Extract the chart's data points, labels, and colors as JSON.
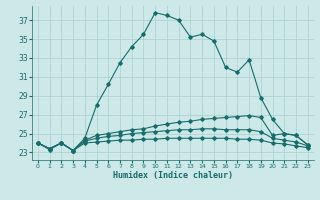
{
  "xlabel": "Humidex (Indice chaleur)",
  "x_ticks": [
    0,
    1,
    2,
    3,
    4,
    5,
    6,
    7,
    8,
    9,
    10,
    11,
    12,
    13,
    14,
    15,
    16,
    17,
    18,
    19,
    20,
    21,
    22,
    23
  ],
  "y_ticks": [
    23,
    25,
    27,
    29,
    31,
    33,
    35,
    37
  ],
  "ylim": [
    22.2,
    38.5
  ],
  "xlim": [
    -0.5,
    23.5
  ],
  "bg_color": "#cce8e8",
  "line_color": "#1a6b6b",
  "grid_color": "#aacfcf",
  "series1": [
    24.0,
    23.3,
    24.0,
    23.2,
    24.5,
    28.0,
    30.2,
    32.5,
    34.2,
    35.5,
    37.8,
    37.5,
    37.0,
    35.2,
    35.5,
    34.8,
    32.0,
    31.5,
    32.8,
    28.8,
    26.5,
    25.0,
    24.8,
    23.8
  ],
  "series2": [
    24.0,
    23.4,
    24.0,
    23.2,
    24.3,
    24.8,
    25.0,
    25.2,
    25.4,
    25.5,
    25.8,
    26.0,
    26.2,
    26.3,
    26.5,
    26.6,
    26.7,
    26.8,
    26.9,
    26.7,
    24.8,
    25.0,
    24.8,
    23.8
  ],
  "series3": [
    24.0,
    23.4,
    24.0,
    23.2,
    24.2,
    24.5,
    24.7,
    24.8,
    25.0,
    25.1,
    25.2,
    25.3,
    25.4,
    25.4,
    25.5,
    25.5,
    25.4,
    25.4,
    25.4,
    25.2,
    24.5,
    24.3,
    24.1,
    23.7
  ],
  "series4": [
    24.0,
    23.4,
    24.0,
    23.2,
    24.0,
    24.1,
    24.2,
    24.3,
    24.3,
    24.4,
    24.4,
    24.5,
    24.5,
    24.5,
    24.5,
    24.5,
    24.5,
    24.4,
    24.4,
    24.3,
    24.0,
    23.9,
    23.7,
    23.5
  ]
}
